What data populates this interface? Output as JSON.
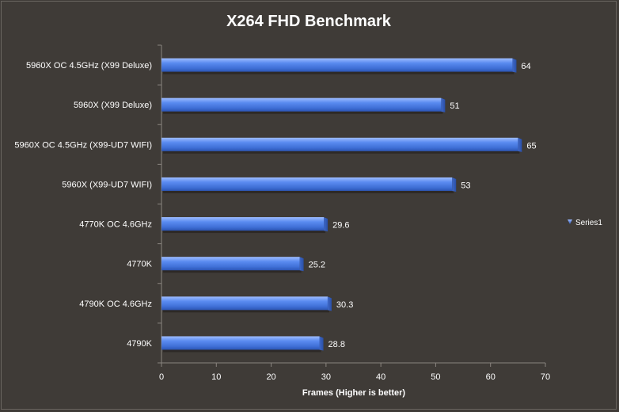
{
  "chart_data": {
    "type": "bar",
    "orientation": "horizontal",
    "title": "X264 FHD Benchmark",
    "xlabel": "Frames (Higher is better)",
    "ylabel": "",
    "xlim": [
      0,
      70
    ],
    "xticks": [
      0,
      10,
      20,
      30,
      40,
      50,
      60,
      70
    ],
    "categories": [
      "5960X OC 4.5GHz (X99 Deluxe)",
      "5960X (X99 Deluxe)",
      "5960X OC 4.5GHz (X99-UD7 WIFI)",
      "5960X (X99-UD7 WIFI)",
      "4770K OC 4.6GHz",
      "4770K",
      "4790K OC 4.6GHz",
      "4790K"
    ],
    "series": [
      {
        "name": "Series1",
        "values": [
          64,
          51,
          65,
          53,
          29.6,
          25.2,
          30.3,
          28.8
        ],
        "labels": [
          "64",
          "51",
          "65",
          "53",
          "29.6",
          "25.2",
          "30.3",
          "28.8"
        ]
      }
    ],
    "legend_position": "right",
    "grid": false,
    "colors": {
      "background": "#3f3b37",
      "bar": "#4f7fe0",
      "text": "#ffffff",
      "axis": "#8a857f"
    }
  }
}
